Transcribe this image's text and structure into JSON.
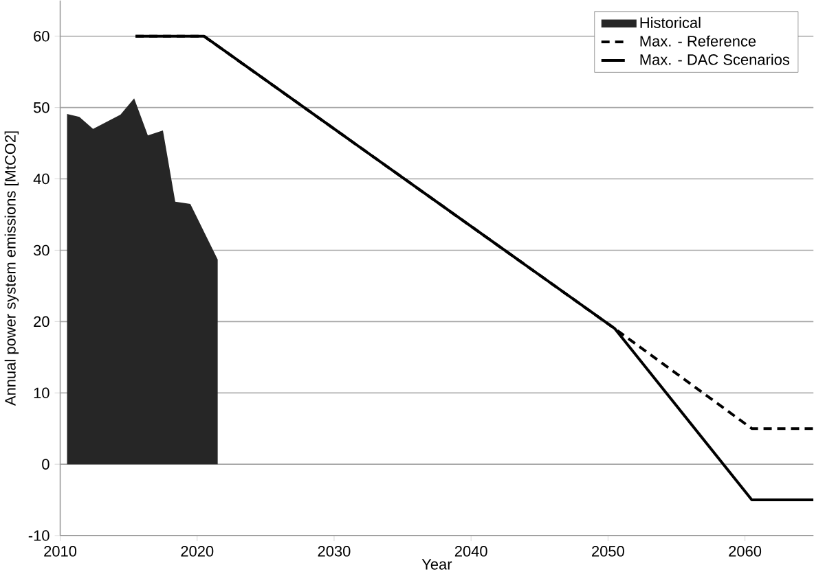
{
  "chart_data": {
    "type": "line",
    "xlabel": "Year",
    "ylabel": "Annual power system emissions [MtCO2]",
    "xlim": [
      2010,
      2065
    ],
    "xticks": [
      2010,
      2020,
      2030,
      2040,
      2050,
      2060
    ],
    "ylim": [
      -10,
      65
    ],
    "yticks": [
      -10,
      0,
      10,
      20,
      30,
      40,
      50,
      60
    ],
    "grid": "y",
    "legend": "top right",
    "series": [
      {
        "name": "Historical",
        "type": "area",
        "color": "#262626",
        "x": [
          2010.5,
          2011.4,
          2012.4,
          2014.4,
          2015.4,
          2016.4,
          2017.5,
          2018.4,
          2019.5,
          2021.5
        ],
        "values": [
          49.1,
          48.7,
          47,
          49,
          51.3,
          46.1,
          46.8,
          36.8,
          36.5,
          28.7
        ]
      },
      {
        "name": "Max. - Reference",
        "color": "#000000",
        "line_style": "dashed",
        "x": [
          2015.5,
          2020.5,
          2050.5,
          2060.5,
          2065
        ],
        "values": [
          60,
          60,
          19,
          5,
          5
        ]
      },
      {
        "name": "Max. - DAC Scenarios",
        "color": "#000000",
        "line_style": "solid",
        "x": [
          2015.5,
          2020.5,
          2050.5,
          2060.5,
          2065
        ],
        "values": [
          60,
          60,
          19,
          -5,
          -5
        ]
      }
    ]
  }
}
